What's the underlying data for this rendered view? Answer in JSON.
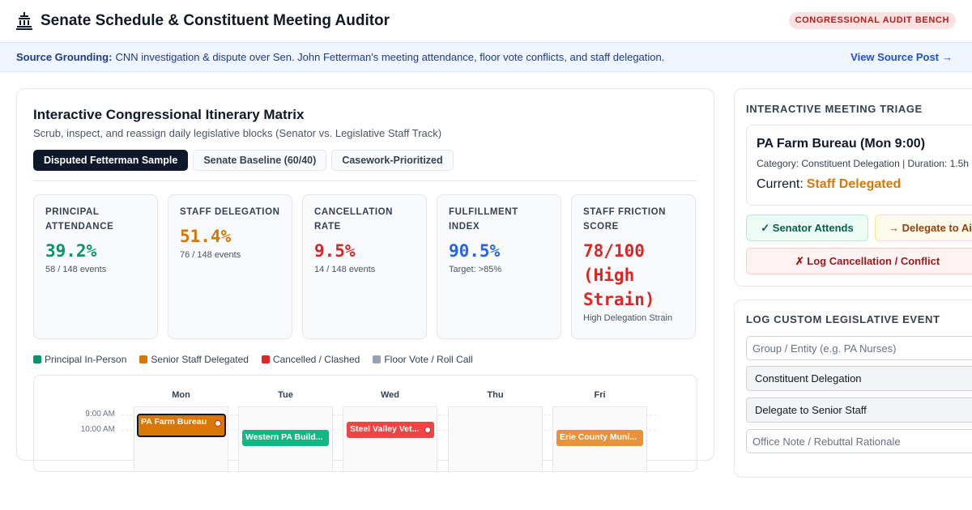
{
  "header": {
    "title": "Senate Schedule & Constituent Meeting Auditor",
    "badge": "CONGRESSIONAL AUDIT BENCH",
    "logo_icon": "capitol-building-icon"
  },
  "source": {
    "label": "Source Grounding:",
    "text": "CNN investigation & dispute over Sen. John Fetterman's meeting attendance, floor vote conflicts, and staff delegation.",
    "link": "View Source Post",
    "link_arrow": "→"
  },
  "matrix": {
    "title": "Interactive Congressional Itinerary Matrix",
    "subtitle": "Scrub, inspect, and reassign daily legislative blocks (Senator vs. Legislative Staff Track)",
    "tabs": [
      {
        "label": "Disputed Fetterman Sample",
        "active": true
      },
      {
        "label": "Senate Baseline (60/40)",
        "active": false
      },
      {
        "label": "Casework-Prioritized",
        "active": false
      }
    ],
    "metrics": [
      {
        "label": "PRINCIPAL ATTENDANCE",
        "value": "39.2%",
        "sub": "58 / 148 events",
        "color": "green"
      },
      {
        "label": "STAFF DELEGATION",
        "value": "51.4%",
        "sub": "76 / 148 events",
        "color": "orange"
      },
      {
        "label": "CANCELLATION RATE",
        "value": "9.5%",
        "sub": "14 / 148 events",
        "color": "red"
      },
      {
        "label": "FULFILLMENT INDEX",
        "value": "90.5%",
        "sub": "Target: >85%",
        "color": "blue"
      },
      {
        "label": "STAFF FRICTION SCORE",
        "value": "78/100 (High Strain)",
        "sub": "High Delegation Strain",
        "color": "red"
      }
    ],
    "legend": [
      {
        "label": "Principal In-Person",
        "color": "#059669"
      },
      {
        "label": "Senior Staff Delegated",
        "color": "#d97706"
      },
      {
        "label": "Cancelled / Clashed",
        "color": "#dc2626"
      },
      {
        "label": "Floor Vote / Roll Call",
        "color": "#94a3b8"
      }
    ],
    "calendar": {
      "days": [
        "Mon",
        "Tue",
        "Wed",
        "Thu",
        "Fri"
      ],
      "times": [
        "9:00 AM",
        "10:00 AM"
      ],
      "events": [
        {
          "label": "PA Farm Bureau",
          "day": 0,
          "color": "#d97706",
          "selected": true,
          "conflict": true
        },
        {
          "label": "Western PA Build...",
          "day": 1,
          "color": "#10b981",
          "selected": false,
          "conflict": false
        },
        {
          "label": "Steel Valley Vet...",
          "day": 2,
          "color": "#ef4444",
          "selected": false,
          "conflict": true
        },
        {
          "label": "Erie County Muni...",
          "day": 4,
          "color": "#e8933a",
          "selected": false,
          "conflict": false
        }
      ]
    }
  },
  "triage": {
    "title": "INTERACTIVE MEETING TRIAGE",
    "meeting": "PA Farm Bureau (Mon 9:00)",
    "meta": "Category: Constituent Delegation | Duration: 1.5h",
    "current_label": "Current:",
    "current_value": "Staff Delegated",
    "attend_label": "✓ Senator Attends",
    "delegate_label": "→ Delegate to Aide",
    "cancel_label": "✗ Log Cancellation / Conflict"
  },
  "custom": {
    "title": "LOG CUSTOM LEGISLATIVE EVENT",
    "group_placeholder": "Group / Entity (e.g. PA Nurses)",
    "category": "Constituent Delegation",
    "assignment": "Delegate to Senior Staff",
    "note_placeholder": "Office Note / Rebuttal Rationale"
  }
}
